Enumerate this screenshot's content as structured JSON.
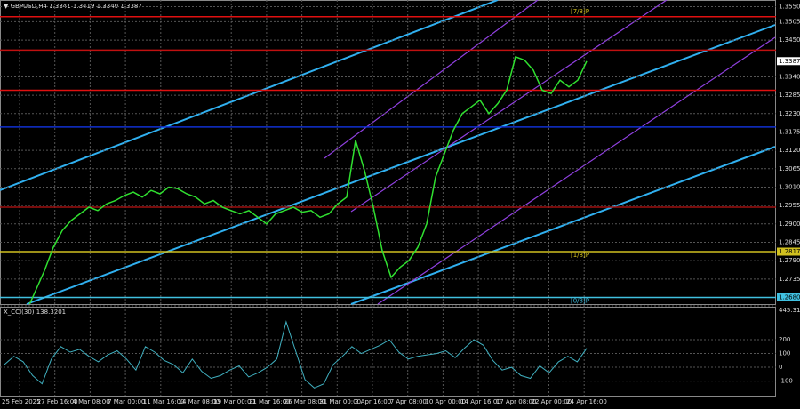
{
  "header": {
    "title": "▼ GBPUSD,H4 1.3341 1.3419 1.3340 1.3387"
  },
  "price": {
    "ylim": [
      1.266,
      1.357
    ],
    "yticks": [
      {
        "value": 1.355,
        "label": "1.3550"
      },
      {
        "value": 1.3505,
        "label": "1.3505"
      },
      {
        "value": 1.345,
        "label": "1.3450"
      },
      {
        "value": 1.334,
        "label": "1.3340"
      },
      {
        "value": 1.3285,
        "label": "1.3285"
      },
      {
        "value": 1.323,
        "label": "1.3230"
      },
      {
        "value": 1.3175,
        "label": "1.3175"
      },
      {
        "value": 1.312,
        "label": "1.3120"
      },
      {
        "value": 1.3065,
        "label": "1.3065"
      },
      {
        "value": 1.301,
        "label": "1.3010"
      },
      {
        "value": 1.2955,
        "label": "1.2955"
      },
      {
        "value": 1.29,
        "label": "1.2900"
      },
      {
        "value": 1.2845,
        "label": "1.2845"
      },
      {
        "value": 1.279,
        "label": "1.2790"
      },
      {
        "value": 1.2735,
        "label": "1.2735"
      }
    ],
    "current": {
      "value": 1.3387,
      "label": "1.3387"
    },
    "levels": [
      {
        "value": 1.352,
        "color": "#e01010"
      },
      {
        "value": 1.342,
        "color": "#c01010"
      },
      {
        "value": 1.33,
        "color": "#e01010"
      },
      {
        "value": 1.319,
        "color": "#1030d0"
      },
      {
        "value": 1.295,
        "color": "#a01010"
      },
      {
        "value": 1.2817,
        "color": "#d0c020",
        "label": "1.2817",
        "tag": "[1/8]P"
      },
      {
        "value": 1.268,
        "color": "#40c0e0",
        "label": "1.2680",
        "tag": "[0/8]P"
      }
    ],
    "top_tag": "[7/8]P",
    "values": [
      1.264,
      1.27,
      1.276,
      1.283,
      1.288,
      1.291,
      1.293,
      1.295,
      1.294,
      1.296,
      1.297,
      1.2985,
      1.2995,
      1.298,
      1.3,
      1.299,
      1.301,
      1.3005,
      1.299,
      1.298,
      1.296,
      1.297,
      1.295,
      1.294,
      1.293,
      1.294,
      1.292,
      1.29,
      1.293,
      1.294,
      1.295,
      1.2935,
      1.294,
      1.292,
      1.293,
      1.296,
      1.298,
      1.315,
      1.306,
      1.295,
      1.282,
      1.274,
      1.277,
      1.279,
      1.283,
      1.29,
      1.304,
      1.311,
      1.318,
      1.323,
      1.325,
      1.327,
      1.323,
      1.326,
      1.33,
      1.34,
      1.339,
      1.336,
      1.33,
      1.329,
      1.333,
      1.331,
      1.333,
      1.3387
    ]
  },
  "cci": {
    "title": "X_CCI(30) 138.3201",
    "ylim": [
      -206,
      439
    ],
    "yticks": [
      {
        "value": 445.3108,
        "label": "445.3108"
      },
      200,
      100,
      0,
      -100
    ],
    "values": [
      20,
      80,
      40,
      -60,
      -120,
      60,
      150,
      110,
      130,
      80,
      40,
      90,
      120,
      60,
      -20,
      150,
      110,
      50,
      20,
      -40,
      60,
      -30,
      -80,
      -60,
      -20,
      10,
      -70,
      -40,
      0,
      60,
      330,
      120,
      -90,
      -150,
      -120,
      20,
      80,
      150,
      100,
      130,
      160,
      200,
      110,
      60,
      80,
      90,
      100,
      120,
      70,
      140,
      200,
      160,
      50,
      -20,
      0,
      -60,
      -80,
      10,
      -40,
      40,
      80,
      40,
      138
    ]
  },
  "dates": [
    "25 Feb 2025",
    "27 Feb 16:00",
    "4 Mar 08:00",
    "7 Mar 00:00",
    "11 Mar 16:00",
    "14 Mar 08:00",
    "19 Mar 00:00",
    "21 Mar 16:00",
    "26 Mar 08:00",
    "31 Mar 00:00",
    "2 Apr 16:00",
    "7 Apr 08:00",
    "10 Apr 00:00",
    "14 Apr 16:00",
    "17 Apr 08:00",
    "22 Apr 00:00",
    "24 Apr 16:00"
  ]
}
